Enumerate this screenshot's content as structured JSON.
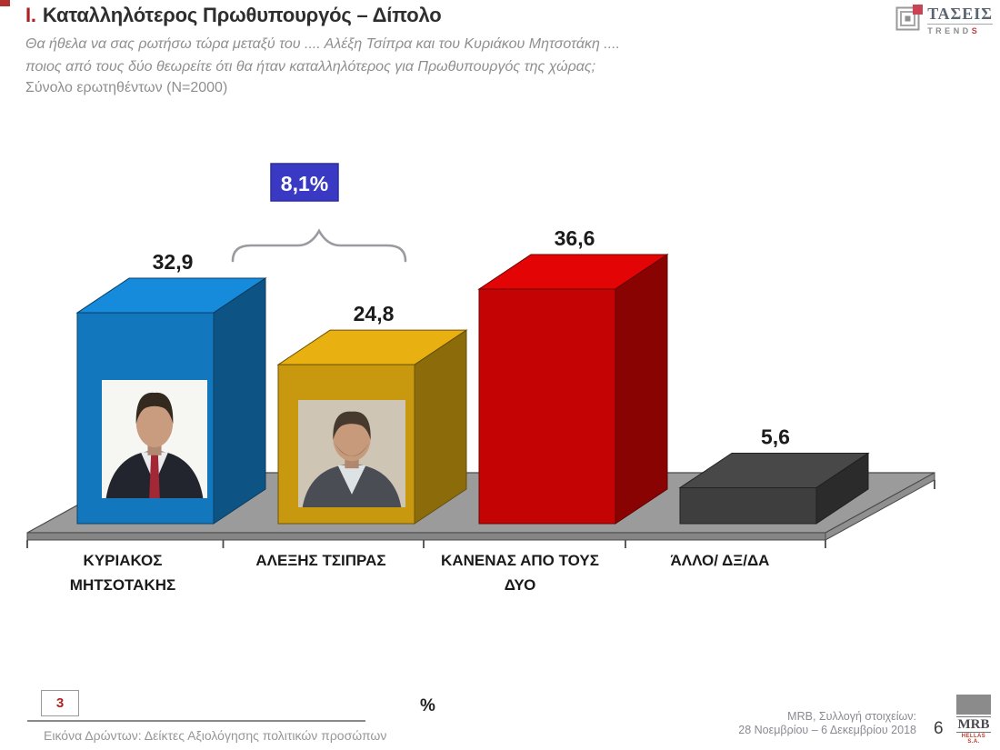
{
  "header": {
    "title_prefix": "Ι.",
    "title": "Καταλληλότερος Πρωθυπουργός – Δίπολο",
    "question_line1": "Θα ήθελα να σας ρωτήσω τώρα μεταξύ του .... Αλέξη Τσίπρα και του Κυριάκου Μητσοτάκη ....",
    "question_line2": "ποιος από τους δύο θεωρείτε ότι θα ήταν καταλληλότερος για Πρωθυπουργός της χώρας;",
    "sample_note": "Σύνολο ερωτηθέντων (N=2000)"
  },
  "brand": {
    "name": "ΤΑΣΕΙΣ",
    "sub_prefix": "TREND",
    "sub_suffix": "S"
  },
  "chart_data": {
    "type": "bar",
    "style": "3d-column",
    "title": "Καταλληλότερος Πρωθυπουργός – Δίπολο",
    "xlabel": "",
    "ylabel": "%",
    "ylim": [
      0,
      40
    ],
    "grid": false,
    "legend": "none",
    "categories": [
      "ΚΥΡΙΑΚΟΣ ΜΗΤΣΟΤΑΚΗΣ",
      "ΑΛΕΞΗΣ ΤΣΙΠΡΑΣ",
      "ΚΑΝΕΝΑΣ ΑΠΟ ΤΟΥΣ ΔΥΟ",
      "ΆΛΛΟ/ ΔΞ/ΔΑ"
    ],
    "category_lines": [
      [
        "ΚΥΡΙΑΚΟΣ",
        "ΜΗΤΣΟΤΑΚΗΣ"
      ],
      [
        "ΑΛΕΞΗΣ ΤΣΙΠΡΑΣ"
      ],
      [
        "ΚΑΝΕΝΑΣ ΑΠΟ ΤΟΥΣ",
        "ΔΥΟ"
      ],
      [
        "ΆΛΛΟ/ ΔΞ/ΔΑ"
      ]
    ],
    "values": [
      32.9,
      24.8,
      36.6,
      5.6
    ],
    "value_labels": [
      "32,9",
      "24,8",
      "36,6",
      "5,6"
    ],
    "bar_colors": [
      "#1377BD",
      "#C8990F",
      "#C40404",
      "#3E3E3E"
    ],
    "platform_color": "#9B9B9B",
    "difference_annotation": {
      "label": "8,1%",
      "value": 8.1,
      "between": [
        0,
        1
      ],
      "box_color": "#3939C4"
    },
    "portraits": [
      {
        "bar_index": 0,
        "name": "kyriakos-mitsotakis-photo"
      },
      {
        "bar_index": 1,
        "name": "alexis-tsipras-photo"
      }
    ]
  },
  "footer": {
    "reference_number": "3",
    "source_note": "Εικόνα Δρώντων: Δείκτες Αξιολόγησης πολιτικών προσώπων",
    "unit_label": "%",
    "collection_line1": "MRB, Συλλογή στοιχείων:",
    "collection_line2": "28 Νοεμβρίου – 6 Δεκεμβρίου 2018",
    "page_number": "6",
    "mrb_logo": {
      "text": "MRB",
      "sub": "HELLAS S.A."
    }
  }
}
